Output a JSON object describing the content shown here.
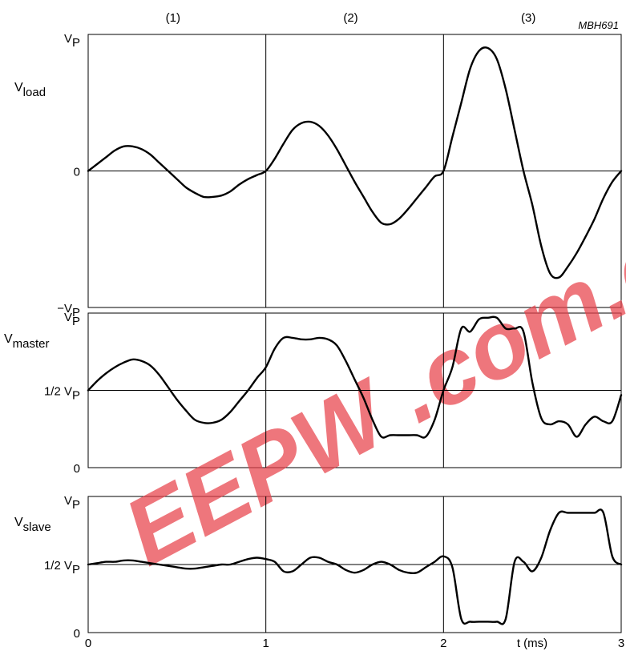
{
  "chart_data": {
    "type": "line",
    "figure_id": "MBH691",
    "segment_labels": [
      "(1)",
      "(2)",
      "(3)"
    ],
    "xlabel": "t (ms)",
    "x_ticks": [
      "0",
      "1",
      "2",
      "3"
    ],
    "xlim": [
      0,
      3
    ],
    "watermark": "EEPW .com.cn",
    "panels": [
      {
        "id": "load",
        "ylabel_main": "V",
        "ylabel_sub": "load",
        "ylim": [
          -1,
          1
        ],
        "y_tick_labels": [
          {
            "value": 1,
            "main": "V",
            "sub": "P"
          },
          {
            "value": 0,
            "main": "0",
            "sub": ""
          },
          {
            "value": -1,
            "main": "−V",
            "sub": "P"
          }
        ],
        "x": [
          0,
          0.05,
          0.1,
          0.15,
          0.2,
          0.25,
          0.3,
          0.35,
          0.4,
          0.45,
          0.5,
          0.55,
          0.6,
          0.65,
          0.7,
          0.75,
          0.8,
          0.85,
          0.9,
          0.95,
          1.0,
          1.05,
          1.1,
          1.15,
          1.2,
          1.25,
          1.3,
          1.35,
          1.4,
          1.45,
          1.5,
          1.55,
          1.6,
          1.65,
          1.7,
          1.75,
          1.8,
          1.85,
          1.9,
          1.95,
          2.0,
          2.05,
          2.1,
          2.15,
          2.2,
          2.25,
          2.3,
          2.35,
          2.4,
          2.45,
          2.5,
          2.55,
          2.6,
          2.65,
          2.7,
          2.75,
          2.8,
          2.85,
          2.9,
          2.95,
          3.0
        ],
        "y": [
          0,
          0.05,
          0.1,
          0.15,
          0.18,
          0.18,
          0.16,
          0.12,
          0.06,
          0,
          -0.06,
          -0.12,
          -0.16,
          -0.19,
          -0.19,
          -0.18,
          -0.15,
          -0.1,
          -0.06,
          -0.03,
          0,
          0.09,
          0.2,
          0.3,
          0.35,
          0.36,
          0.33,
          0.26,
          0.16,
          0.04,
          -0.08,
          -0.19,
          -0.3,
          -0.38,
          -0.39,
          -0.35,
          -0.28,
          -0.2,
          -0.12,
          -0.04,
          0,
          0.25,
          0.5,
          0.75,
          0.88,
          0.9,
          0.82,
          0.6,
          0.3,
          0,
          -0.25,
          -0.55,
          -0.75,
          -0.78,
          -0.7,
          -0.6,
          -0.48,
          -0.35,
          -0.2,
          -0.08,
          0
        ]
      },
      {
        "id": "master",
        "ylabel_main": "V",
        "ylabel_sub": "master",
        "ylim": [
          0,
          1
        ],
        "y_tick_labels": [
          {
            "value": 1,
            "main": "V",
            "sub": "P"
          },
          {
            "value": 0.5,
            "main": "1/2 V",
            "sub": "P"
          },
          {
            "value": 0,
            "main": "0",
            "sub": ""
          }
        ],
        "x": [
          0,
          0.05,
          0.1,
          0.15,
          0.2,
          0.25,
          0.3,
          0.35,
          0.4,
          0.45,
          0.5,
          0.55,
          0.6,
          0.65,
          0.7,
          0.75,
          0.8,
          0.85,
          0.9,
          0.95,
          1.0,
          1.05,
          1.1,
          1.15,
          1.2,
          1.25,
          1.3,
          1.35,
          1.4,
          1.45,
          1.5,
          1.55,
          1.6,
          1.65,
          1.7,
          1.75,
          1.8,
          1.85,
          1.9,
          1.95,
          2.0,
          2.05,
          2.1,
          2.15,
          2.2,
          2.25,
          2.3,
          2.35,
          2.4,
          2.45,
          2.5,
          2.55,
          2.6,
          2.65,
          2.7,
          2.75,
          2.8,
          2.85,
          2.9,
          2.95,
          3.0
        ],
        "y": [
          0.5,
          0.56,
          0.61,
          0.65,
          0.68,
          0.7,
          0.69,
          0.66,
          0.6,
          0.52,
          0.44,
          0.37,
          0.31,
          0.29,
          0.29,
          0.31,
          0.36,
          0.43,
          0.5,
          0.58,
          0.65,
          0.77,
          0.84,
          0.84,
          0.83,
          0.83,
          0.84,
          0.83,
          0.79,
          0.69,
          0.57,
          0.45,
          0.31,
          0.2,
          0.21,
          0.21,
          0.21,
          0.21,
          0.2,
          0.31,
          0.5,
          0.65,
          0.9,
          0.88,
          0.96,
          0.97,
          0.97,
          0.9,
          0.9,
          0.88,
          0.55,
          0.32,
          0.28,
          0.3,
          0.28,
          0.2,
          0.28,
          0.33,
          0.3,
          0.3,
          0.47
        ]
      },
      {
        "id": "slave",
        "ylabel_main": "V",
        "ylabel_sub": "slave",
        "ylim": [
          0,
          1
        ],
        "y_tick_labels": [
          {
            "value": 1,
            "main": "V",
            "sub": "P"
          },
          {
            "value": 0.5,
            "main": "1/2 V",
            "sub": "P"
          },
          {
            "value": 0,
            "main": "0",
            "sub": ""
          }
        ],
        "x": [
          0,
          0.05,
          0.1,
          0.15,
          0.2,
          0.25,
          0.3,
          0.35,
          0.4,
          0.45,
          0.5,
          0.55,
          0.6,
          0.65,
          0.7,
          0.75,
          0.8,
          0.85,
          0.9,
          0.95,
          1.0,
          1.05,
          1.1,
          1.15,
          1.2,
          1.25,
          1.3,
          1.35,
          1.4,
          1.45,
          1.5,
          1.55,
          1.6,
          1.65,
          1.7,
          1.75,
          1.8,
          1.85,
          1.9,
          1.95,
          2.0,
          2.05,
          2.1,
          2.15,
          2.2,
          2.25,
          2.3,
          2.35,
          2.4,
          2.45,
          2.5,
          2.55,
          2.6,
          2.65,
          2.7,
          2.75,
          2.8,
          2.85,
          2.9,
          2.95,
          3.0
        ],
        "y": [
          0.5,
          0.51,
          0.52,
          0.52,
          0.53,
          0.53,
          0.52,
          0.51,
          0.5,
          0.49,
          0.48,
          0.47,
          0.47,
          0.48,
          0.49,
          0.5,
          0.5,
          0.52,
          0.54,
          0.55,
          0.54,
          0.52,
          0.45,
          0.45,
          0.5,
          0.55,
          0.55,
          0.52,
          0.5,
          0.46,
          0.44,
          0.46,
          0.5,
          0.52,
          0.5,
          0.46,
          0.44,
          0.44,
          0.48,
          0.52,
          0.56,
          0.48,
          0.1,
          0.08,
          0.08,
          0.08,
          0.08,
          0.1,
          0.52,
          0.52,
          0.45,
          0.55,
          0.75,
          0.88,
          0.88,
          0.88,
          0.88,
          0.88,
          0.88,
          0.56,
          0.5
        ]
      }
    ]
  }
}
